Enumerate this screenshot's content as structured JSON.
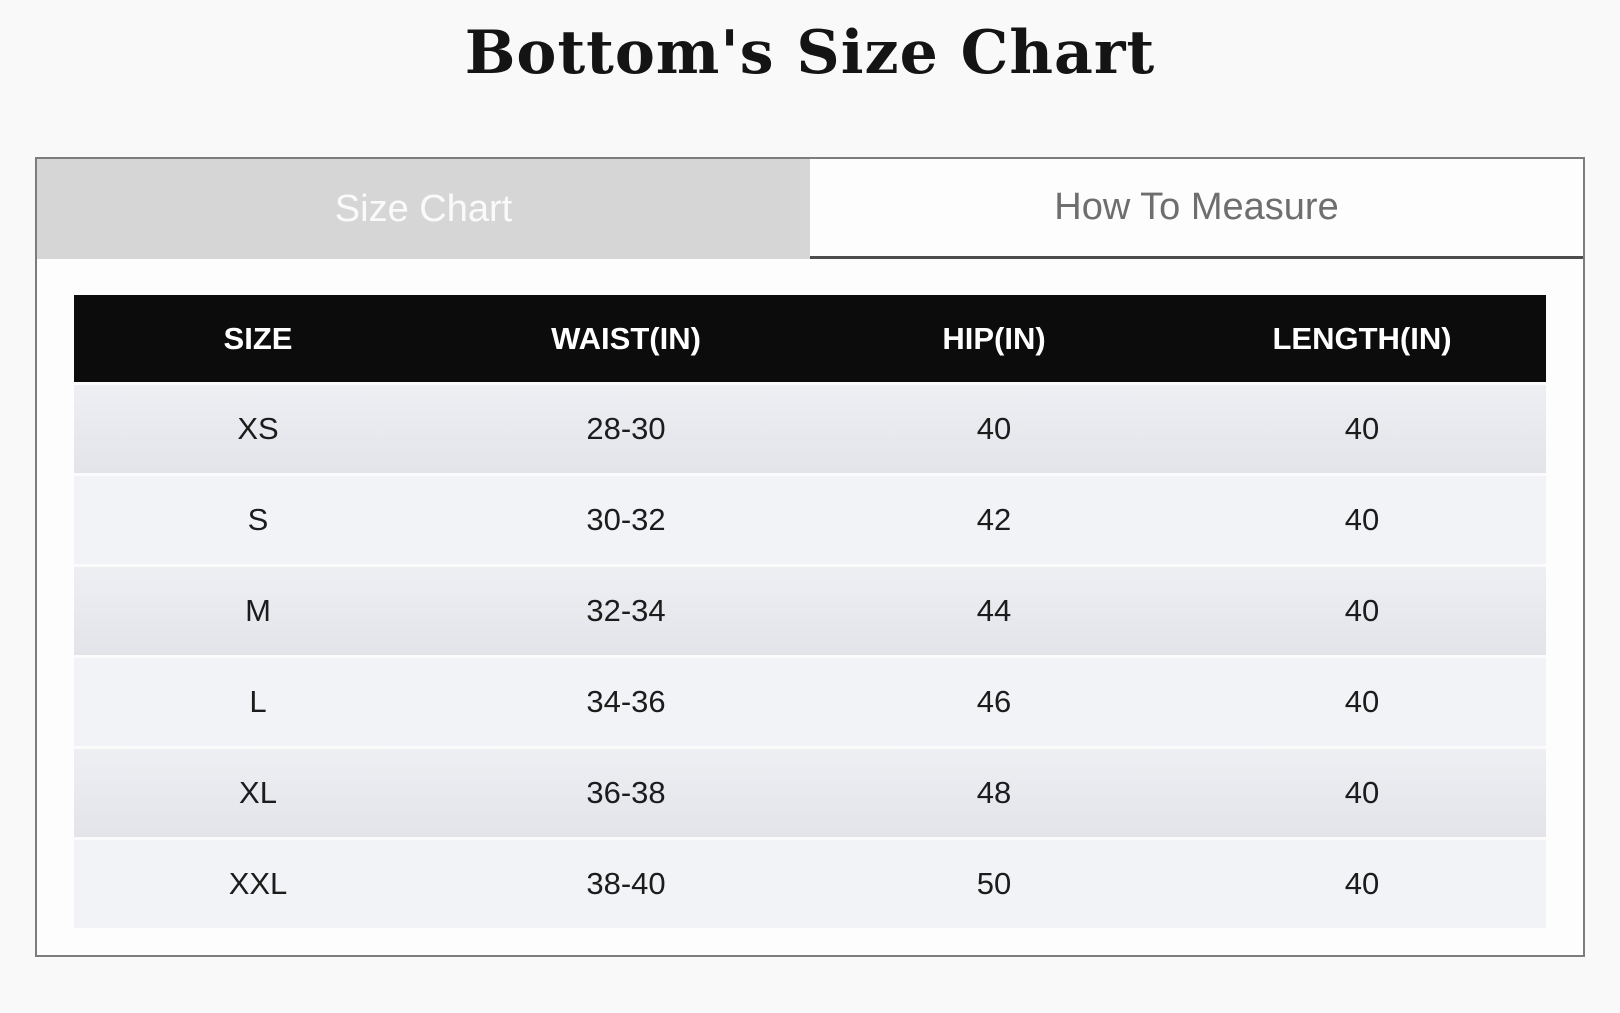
{
  "page": {
    "title": "Bottom's Size Chart"
  },
  "tabs": {
    "size_chart": {
      "label": "Size Chart",
      "active": true
    },
    "how_to_measure": {
      "label": "How To Measure",
      "active": false
    }
  },
  "size_chart": {
    "columns": [
      "SIZE",
      "WAIST(IN)",
      "HIP(IN)",
      "LENGTH(IN)"
    ],
    "rows": [
      [
        "XS",
        "28-30",
        "40",
        "40"
      ],
      [
        "S",
        "30-32",
        "42",
        "40"
      ],
      [
        "M",
        "32-34",
        "44",
        "40"
      ],
      [
        "L",
        "34-36",
        "46",
        "40"
      ],
      [
        "XL",
        "36-38",
        "48",
        "40"
      ],
      [
        "XXL",
        "38-40",
        "50",
        "40"
      ]
    ]
  },
  "colors": {
    "page_background": "#f9f9f9",
    "panel_background": "#fdfdfd",
    "panel_border": "#7d7d7d",
    "active_tab_background": "#d6d6d6",
    "active_tab_text": "#fafafa",
    "inactive_tab_text": "#6e6e6e",
    "inactive_tab_underline": "#4d4d4d",
    "header_background": "#0c0c0c",
    "header_text": "#ffffff",
    "row_odd_background": "#e4e6eb",
    "row_even_background": "#f2f3f6",
    "cell_text": "#1c1c1c"
  }
}
